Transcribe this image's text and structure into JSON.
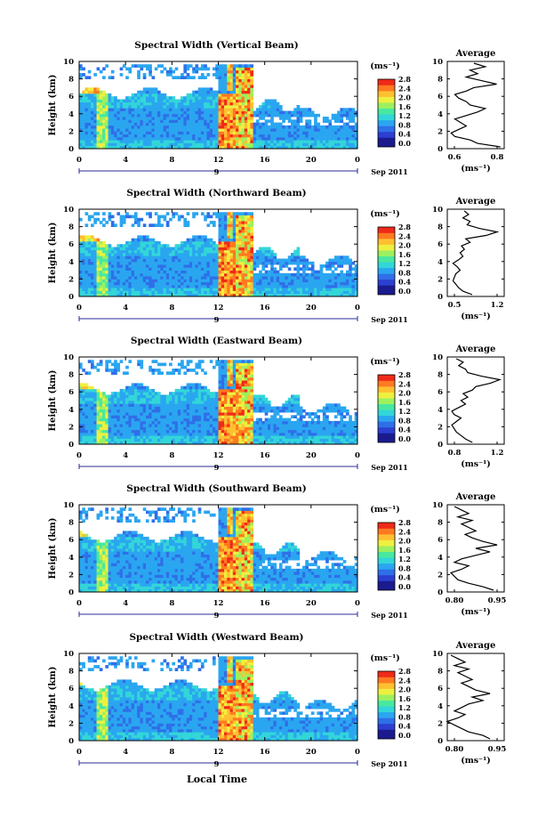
{
  "figure": {
    "xlabel": "Local Time",
    "date_label": "Sep 2011",
    "day_label": "9",
    "colorbar_unit": "(ms⁻¹)",
    "colorbar_ticks": [
      "0.0",
      "0.4",
      "0.8",
      "1.2",
      "1.6",
      "2.0",
      "2.4",
      "2.8"
    ],
    "avg_title": "Average",
    "avg_xlabel": "(ms⁻¹)",
    "ylabel": "Height (km)",
    "colormap": [
      "#1b1b8f",
      "#2b3fd0",
      "#2f6fe8",
      "#2aa6f0",
      "#33d6d8",
      "#48e8a0",
      "#9cf060",
      "#eef040",
      "#ffc030",
      "#ff7a20",
      "#f02a18"
    ]
  },
  "chart_data": [
    {
      "type": "heatmap",
      "title": "Spectral Width (Vertical Beam)",
      "x_range_hours": [
        0,
        24
      ],
      "x_ticks": [
        "0",
        "4",
        "8",
        "12",
        "16",
        "20",
        "0"
      ],
      "ylim_km": [
        0,
        10
      ],
      "y_ticks": [
        "0",
        "2",
        "4",
        "6",
        "8",
        "10"
      ],
      "color_range": [
        0.0,
        2.8
      ],
      "average_profile": {
        "xlim": [
          0.6,
          0.9
        ],
        "x_ticks": [
          "0.6",
          "0.8"
        ],
        "y_ticks": [
          "0",
          "2",
          "4",
          "6",
          "8",
          "10"
        ],
        "height_km": [
          0.2,
          0.6,
          1.0,
          1.4,
          1.8,
          2.2,
          2.6,
          3.0,
          3.4,
          3.8,
          4.2,
          4.6,
          5.0,
          5.4,
          5.8,
          6.2,
          6.6,
          7.0,
          7.4,
          7.8,
          8.2,
          8.6,
          9.0,
          9.4,
          9.8
        ],
        "values": [
          0.88,
          0.76,
          0.72,
          0.64,
          0.62,
          0.66,
          0.7,
          0.67,
          0.64,
          0.7,
          0.76,
          0.8,
          0.72,
          0.7,
          0.66,
          0.64,
          0.7,
          0.74,
          0.86,
          0.78,
          0.7,
          0.76,
          0.72,
          0.8,
          0.74
        ]
      }
    },
    {
      "type": "heatmap",
      "title": "Spectral Width (Northward Beam)",
      "x_range_hours": [
        0,
        24
      ],
      "x_ticks": [
        "0",
        "4",
        "8",
        "12",
        "16",
        "20",
        "0"
      ],
      "ylim_km": [
        0,
        10
      ],
      "y_ticks": [
        "0",
        "2",
        "4",
        "6",
        "8",
        "10"
      ],
      "color_range": [
        0.0,
        2.8
      ],
      "average_profile": {
        "xlim": [
          0.5,
          1.3
        ],
        "x_ticks": [
          "0.5",
          "1.2"
        ],
        "y_ticks": [
          "0",
          "2",
          "4",
          "6",
          "8",
          "10"
        ],
        "height_km": [
          0.2,
          0.6,
          1.0,
          1.4,
          1.8,
          2.2,
          2.6,
          3.0,
          3.4,
          3.8,
          4.2,
          4.6,
          5.0,
          5.4,
          5.8,
          6.2,
          6.6,
          7.0,
          7.4,
          7.8,
          8.2,
          8.6,
          9.0,
          9.4,
          9.8
        ],
        "values": [
          0.85,
          0.72,
          0.66,
          0.62,
          0.58,
          0.6,
          0.62,
          0.68,
          0.64,
          0.58,
          0.66,
          0.72,
          0.68,
          0.74,
          0.7,
          0.82,
          0.76,
          1.05,
          1.2,
          0.95,
          0.78,
          0.82,
          0.72,
          0.8,
          0.74
        ]
      }
    },
    {
      "type": "heatmap",
      "title": "Spectral Width (Eastward Beam)",
      "x_range_hours": [
        0,
        24
      ],
      "x_ticks": [
        "0",
        "4",
        "8",
        "12",
        "16",
        "20",
        "0"
      ],
      "ylim_km": [
        0,
        10
      ],
      "y_ticks": [
        "0",
        "2",
        "4",
        "6",
        "8",
        "10"
      ],
      "color_range": [
        0.0,
        2.8
      ],
      "average_profile": {
        "xlim": [
          0.8,
          1.3
        ],
        "x_ticks": [
          "0.8",
          "1.2"
        ],
        "y_ticks": [
          "0",
          "2",
          "4",
          "6",
          "8",
          "10"
        ],
        "height_km": [
          0.2,
          0.6,
          1.0,
          1.4,
          1.8,
          2.2,
          2.6,
          3.0,
          3.4,
          3.8,
          4.2,
          4.6,
          5.0,
          5.4,
          5.8,
          6.2,
          6.6,
          7.0,
          7.4,
          7.8,
          8.2,
          8.6,
          9.0,
          9.4,
          9.8
        ],
        "values": [
          1.02,
          0.96,
          0.92,
          0.88,
          0.86,
          0.84,
          0.88,
          0.92,
          0.86,
          0.84,
          0.9,
          0.96,
          0.92,
          0.98,
          0.94,
          1.02,
          1.05,
          1.18,
          1.26,
          1.1,
          0.98,
          0.96,
          0.9,
          0.94,
          0.88
        ]
      }
    },
    {
      "type": "heatmap",
      "title": "Spectral Width (Southward Beam)",
      "x_range_hours": [
        0,
        24
      ],
      "x_ticks": [
        "0",
        "4",
        "8",
        "12",
        "16",
        "20",
        "0"
      ],
      "ylim_km": [
        0,
        10
      ],
      "y_ticks": [
        "0",
        "2",
        "4",
        "6",
        "8",
        "10"
      ],
      "color_range": [
        0.0,
        2.8
      ],
      "average_profile": {
        "xlim": [
          0.8,
          0.96
        ],
        "x_ticks": [
          "0.80",
          "0.95"
        ],
        "y_ticks": [
          "0",
          "2",
          "4",
          "6",
          "8",
          "10"
        ],
        "height_km": [
          0.2,
          0.6,
          1.0,
          1.4,
          1.8,
          2.2,
          2.6,
          3.0,
          3.4,
          3.8,
          4.2,
          4.6,
          5.0,
          5.4,
          5.8,
          6.2,
          6.6,
          7.0,
          7.4,
          7.8,
          8.2,
          8.6,
          9.0,
          9.4,
          9.8
        ],
        "values": [
          0.93,
          0.9,
          0.86,
          0.83,
          0.82,
          0.81,
          0.84,
          0.86,
          0.82,
          0.84,
          0.88,
          0.92,
          0.88,
          0.94,
          0.9,
          0.87,
          0.85,
          0.88,
          0.86,
          0.84,
          0.87,
          0.83,
          0.86,
          0.84,
          0.82
        ]
      }
    },
    {
      "type": "heatmap",
      "title": "Spectral Width (Westward Beam)",
      "x_range_hours": [
        0,
        24
      ],
      "x_ticks": [
        "0",
        "4",
        "8",
        "12",
        "16",
        "20",
        "0"
      ],
      "ylim_km": [
        0,
        10
      ],
      "y_ticks": [
        "0",
        "2",
        "4",
        "6",
        "8",
        "10"
      ],
      "color_range": [
        0.0,
        2.8
      ],
      "average_profile": {
        "xlim": [
          0.8,
          0.96
        ],
        "x_ticks": [
          "0.80",
          "0.95"
        ],
        "y_ticks": [
          "0",
          "2",
          "4",
          "6",
          "8",
          "10"
        ],
        "height_km": [
          0.2,
          0.6,
          1.0,
          1.4,
          1.8,
          2.2,
          2.6,
          3.0,
          3.4,
          3.8,
          4.2,
          4.6,
          5.0,
          5.4,
          5.8,
          6.2,
          6.6,
          7.0,
          7.4,
          7.8,
          8.2,
          8.6,
          9.0,
          9.4,
          9.8
        ],
        "values": [
          0.92,
          0.9,
          0.86,
          0.84,
          0.82,
          0.8,
          0.83,
          0.85,
          0.82,
          0.84,
          0.86,
          0.9,
          0.87,
          0.92,
          0.88,
          0.86,
          0.84,
          0.87,
          0.85,
          0.83,
          0.86,
          0.82,
          0.85,
          0.83,
          0.81
        ]
      }
    }
  ]
}
